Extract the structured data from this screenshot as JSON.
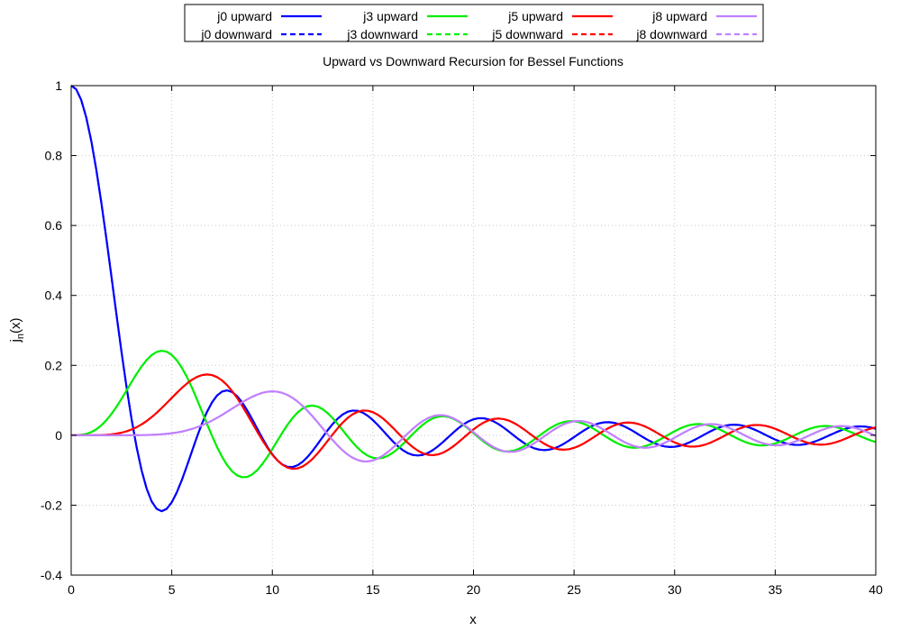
{
  "chart_data": {
    "type": "line",
    "title": "Upward vs Downward Recursion for Bessel Functions",
    "xlabel": "x",
    "ylabel_base": "j",
    "ylabel_sub": "n",
    "ylabel_tail": "(x)",
    "xlim": [
      0,
      40
    ],
    "ylim": [
      -0.4,
      1
    ],
    "x_ticks": [
      0,
      5,
      10,
      15,
      20,
      25,
      30,
      35,
      40
    ],
    "x_tick_labels": [
      "0",
      "5",
      "10",
      "15",
      "20",
      "25",
      "30",
      "35",
      "40"
    ],
    "y_ticks": [
      -0.4,
      -0.2,
      0,
      0.2,
      0.4,
      0.6,
      0.8,
      1
    ],
    "y_tick_labels": [
      "-0.4",
      "-0.2",
      "0",
      "0.2",
      "0.4",
      "0.6",
      "0.8",
      "1"
    ],
    "grid": true,
    "legend_placement": "top-center",
    "sampling": {
      "x_start": 0,
      "x_end": 40,
      "step": 0.25
    },
    "series": [
      {
        "name": "j0 upward",
        "order": 0,
        "method": "upward",
        "color": "#0000ff",
        "dash": "solid"
      },
      {
        "name": "j0 downward",
        "order": 0,
        "method": "downward",
        "color": "#0000ff",
        "dash": "dashed"
      },
      {
        "name": "j3 upward",
        "order": 3,
        "method": "upward",
        "color": "#00ee00",
        "dash": "solid"
      },
      {
        "name": "j3 downward",
        "order": 3,
        "method": "downward",
        "color": "#00ee00",
        "dash": "dashed"
      },
      {
        "name": "j5 upward",
        "order": 5,
        "method": "upward",
        "color": "#ff0000",
        "dash": "solid"
      },
      {
        "name": "j5 downward",
        "order": 5,
        "method": "downward",
        "color": "#ff0000",
        "dash": "dashed"
      },
      {
        "name": "j8 upward",
        "order": 8,
        "method": "upward",
        "color": "#c080ff",
        "dash": "solid"
      },
      {
        "name": "j8 downward",
        "order": 8,
        "method": "downward",
        "color": "#c080ff",
        "dash": "dashed"
      }
    ]
  }
}
